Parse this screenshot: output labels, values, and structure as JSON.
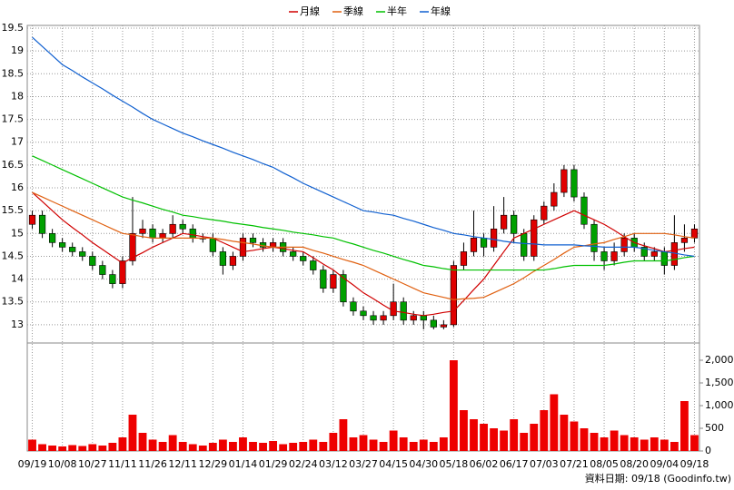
{
  "chart_data": {
    "type": "candlestick",
    "categories": [
      "09/19",
      null,
      null,
      "10/08",
      null,
      null,
      "10/27",
      null,
      null,
      "11/11",
      null,
      null,
      "11/26",
      null,
      null,
      "12/11",
      null,
      null,
      "12/29",
      null,
      null,
      "01/14",
      null,
      null,
      "01/29",
      null,
      null,
      "02/24",
      null,
      null,
      "03/12",
      null,
      null,
      "03/27",
      null,
      null,
      "04/15",
      null,
      null,
      "04/30",
      null,
      null,
      "05/18",
      null,
      null,
      "06/02",
      null,
      null,
      "06/17",
      null,
      null,
      "07/03",
      null,
      null,
      "07/21",
      null,
      null,
      "08/05",
      null,
      null,
      "08/20",
      null,
      null,
      "09/04",
      null,
      null,
      "09/18"
    ],
    "open": [
      15.2,
      15.4,
      15.0,
      14.8,
      14.7,
      14.6,
      14.5,
      14.3,
      14.1,
      13.9,
      14.4,
      15.0,
      15.1,
      14.9,
      15.0,
      15.2,
      15.1,
      14.9,
      14.9,
      14.6,
      14.3,
      14.5,
      14.9,
      14.8,
      14.7,
      14.8,
      14.6,
      14.5,
      14.4,
      14.2,
      13.8,
      14.1,
      13.5,
      13.3,
      13.2,
      13.1,
      13.2,
      13.5,
      13.1,
      13.2,
      13.1,
      12.95,
      13.0,
      14.3,
      14.6,
      14.9,
      14.7,
      15.1,
      15.4,
      15.0,
      14.5,
      15.3,
      15.6,
      15.9,
      16.4,
      15.8,
      15.2,
      14.6,
      14.4,
      14.6,
      14.9,
      14.7,
      14.5,
      14.6,
      14.3,
      14.8,
      14.9
    ],
    "high": [
      15.5,
      15.5,
      15.1,
      14.9,
      14.8,
      14.7,
      14.6,
      14.4,
      14.2,
      14.5,
      15.8,
      15.3,
      15.2,
      15.1,
      15.4,
      15.3,
      15.2,
      15.0,
      15.0,
      14.7,
      14.6,
      15.0,
      15.0,
      14.9,
      14.9,
      14.9,
      14.7,
      14.6,
      14.5,
      14.3,
      14.2,
      14.2,
      13.6,
      13.4,
      13.3,
      13.3,
      13.9,
      13.6,
      13.3,
      13.3,
      13.2,
      13.1,
      14.4,
      14.8,
      15.5,
      15.0,
      15.6,
      15.8,
      15.5,
      15.1,
      15.4,
      15.7,
      16.1,
      16.5,
      16.5,
      15.9,
      15.3,
      14.7,
      14.8,
      15.0,
      15.0,
      14.8,
      14.7,
      14.7,
      15.4,
      15.2,
      15.2
    ],
    "low": [
      15.1,
      14.9,
      14.7,
      14.6,
      14.5,
      14.4,
      14.2,
      14.0,
      13.8,
      13.8,
      14.3,
      14.9,
      14.8,
      14.8,
      14.9,
      15.0,
      14.8,
      14.8,
      14.5,
      14.1,
      14.2,
      14.4,
      14.7,
      14.6,
      14.6,
      14.5,
      14.4,
      14.3,
      14.1,
      13.7,
      13.7,
      13.4,
      13.2,
      13.1,
      13.0,
      13.0,
      13.1,
      13.0,
      13.0,
      12.9,
      12.9,
      12.9,
      12.95,
      14.2,
      14.5,
      14.5,
      14.6,
      15.0,
      14.8,
      14.4,
      14.4,
      15.2,
      15.5,
      15.8,
      15.7,
      15.1,
      14.4,
      14.2,
      14.3,
      14.5,
      14.6,
      14.4,
      14.4,
      14.1,
      14.2,
      14.6,
      14.8
    ],
    "close": [
      15.4,
      15.0,
      14.8,
      14.7,
      14.6,
      14.5,
      14.3,
      14.1,
      13.9,
      14.4,
      15.0,
      15.1,
      14.9,
      15.0,
      15.2,
      15.1,
      14.9,
      14.9,
      14.6,
      14.3,
      14.5,
      14.9,
      14.8,
      14.7,
      14.8,
      14.6,
      14.5,
      14.4,
      14.2,
      13.8,
      14.1,
      13.5,
      13.3,
      13.2,
      13.1,
      13.2,
      13.5,
      13.1,
      13.2,
      13.1,
      12.95,
      13.0,
      14.3,
      14.6,
      14.9,
      14.7,
      15.1,
      15.4,
      15.0,
      14.5,
      15.3,
      15.6,
      15.9,
      16.4,
      15.8,
      15.2,
      14.6,
      14.4,
      14.6,
      14.9,
      14.7,
      14.5,
      14.6,
      14.3,
      14.8,
      14.9,
      15.1
    ],
    "volume": [
      250,
      150,
      120,
      100,
      130,
      110,
      150,
      120,
      180,
      300,
      800,
      400,
      250,
      200,
      350,
      200,
      150,
      120,
      180,
      250,
      200,
      300,
      200,
      180,
      220,
      150,
      180,
      200,
      250,
      200,
      400,
      700,
      300,
      350,
      250,
      200,
      450,
      300,
      200,
      250,
      200,
      300,
      2000,
      900,
      700,
      600,
      500,
      450,
      700,
      400,
      600,
      900,
      1250,
      800,
      650,
      500,
      400,
      300,
      450,
      350,
      300,
      250,
      300,
      250,
      200,
      1100,
      350
    ],
    "up_color": "#e00000",
    "down_color": "#00a000",
    "volume_color": "#ee0000",
    "series": [
      {
        "name": "月線",
        "color": "#d00000",
        "values": [
          15.9,
          15.7,
          15.5,
          15.3,
          15.13,
          14.97,
          14.8,
          14.65,
          14.5,
          14.35,
          14.47,
          14.58,
          14.7,
          14.8,
          14.9,
          15.0,
          14.97,
          14.93,
          14.9,
          14.8,
          14.7,
          14.6,
          14.63,
          14.67,
          14.7,
          14.67,
          14.63,
          14.6,
          14.47,
          14.33,
          14.2,
          14.03,
          13.87,
          13.7,
          13.57,
          13.43,
          13.3,
          13.27,
          13.23,
          13.2,
          13.23,
          13.27,
          13.3,
          13.53,
          13.77,
          14.0,
          14.3,
          14.6,
          14.9,
          15.0,
          15.1,
          15.2,
          15.3,
          15.4,
          15.5,
          15.4,
          15.3,
          15.2,
          15.07,
          14.93,
          14.8,
          14.73,
          14.67,
          14.6,
          14.63,
          14.67,
          14.7
        ]
      },
      {
        "name": "季線",
        "color": "#e06010",
        "values": [
          15.9,
          15.8,
          15.7,
          15.6,
          15.5,
          15.4,
          15.3,
          15.2,
          15.1,
          15.0,
          14.97,
          14.93,
          14.9,
          14.9,
          14.9,
          14.9,
          14.9,
          14.9,
          14.9,
          14.87,
          14.83,
          14.8,
          14.77,
          14.73,
          14.7,
          14.7,
          14.7,
          14.7,
          14.63,
          14.57,
          14.5,
          14.43,
          14.37,
          14.3,
          14.2,
          14.1,
          14.0,
          13.9,
          13.8,
          13.7,
          13.65,
          13.6,
          13.55,
          13.57,
          13.58,
          13.6,
          13.7,
          13.8,
          13.9,
          14.03,
          14.17,
          14.3,
          14.43,
          14.57,
          14.7,
          14.73,
          14.77,
          14.8,
          14.87,
          14.93,
          15.0,
          15.0,
          15.0,
          15.0,
          14.97,
          14.93,
          14.9
        ]
      },
      {
        "name": "半年",
        "color": "#00c000",
        "values": [
          16.7,
          16.6,
          16.5,
          16.4,
          16.3,
          16.2,
          16.1,
          16.0,
          15.9,
          15.8,
          15.73,
          15.67,
          15.6,
          15.53,
          15.47,
          15.4,
          15.37,
          15.33,
          15.3,
          15.27,
          15.23,
          15.2,
          15.17,
          15.13,
          15.1,
          15.07,
          15.03,
          15.0,
          14.97,
          14.93,
          14.9,
          14.83,
          14.77,
          14.7,
          14.63,
          14.57,
          14.5,
          14.43,
          14.37,
          14.3,
          14.27,
          14.23,
          14.2,
          14.2,
          14.2,
          14.2,
          14.2,
          14.2,
          14.2,
          14.2,
          14.2,
          14.2,
          14.23,
          14.27,
          14.3,
          14.3,
          14.3,
          14.3,
          14.33,
          14.37,
          14.4,
          14.4,
          14.4,
          14.4,
          14.43,
          14.47,
          14.5
        ]
      },
      {
        "name": "年線",
        "color": "#1060d0",
        "values": [
          19.3,
          19.1,
          18.9,
          18.7,
          18.57,
          18.43,
          18.3,
          18.17,
          18.03,
          17.9,
          17.77,
          17.63,
          17.5,
          17.4,
          17.3,
          17.2,
          17.12,
          17.03,
          16.95,
          16.87,
          16.78,
          16.7,
          16.62,
          16.53,
          16.45,
          16.33,
          16.22,
          16.1,
          16.0,
          15.9,
          15.8,
          15.7,
          15.6,
          15.5,
          15.47,
          15.43,
          15.4,
          15.33,
          15.27,
          15.2,
          15.13,
          15.07,
          15.0,
          14.97,
          14.93,
          14.9,
          14.87,
          14.83,
          14.8,
          14.78,
          14.77,
          14.75,
          14.75,
          14.75,
          14.75,
          14.73,
          14.72,
          14.7,
          14.7,
          14.7,
          14.7,
          14.67,
          14.63,
          14.6,
          14.57,
          14.53,
          14.5
        ]
      }
    ],
    "ylim": [
      12.6,
      19.56
    ],
    "yticks": [
      13,
      13.5,
      14,
      14.5,
      15,
      15.5,
      16,
      16.5,
      17,
      17.5,
      18,
      18.5,
      19,
      19.5
    ],
    "y2lim": [
      0,
      2380
    ],
    "y2ticks": [
      0,
      500,
      {
        "value": 1000,
        "label": "1,000"
      },
      {
        "value": 1500,
        "label": "1,500"
      },
      {
        "value": 2000,
        "label": "2,000"
      }
    ],
    "grid": true,
    "footer": "資料日期: 09/18 (Goodinfo.tw)"
  }
}
